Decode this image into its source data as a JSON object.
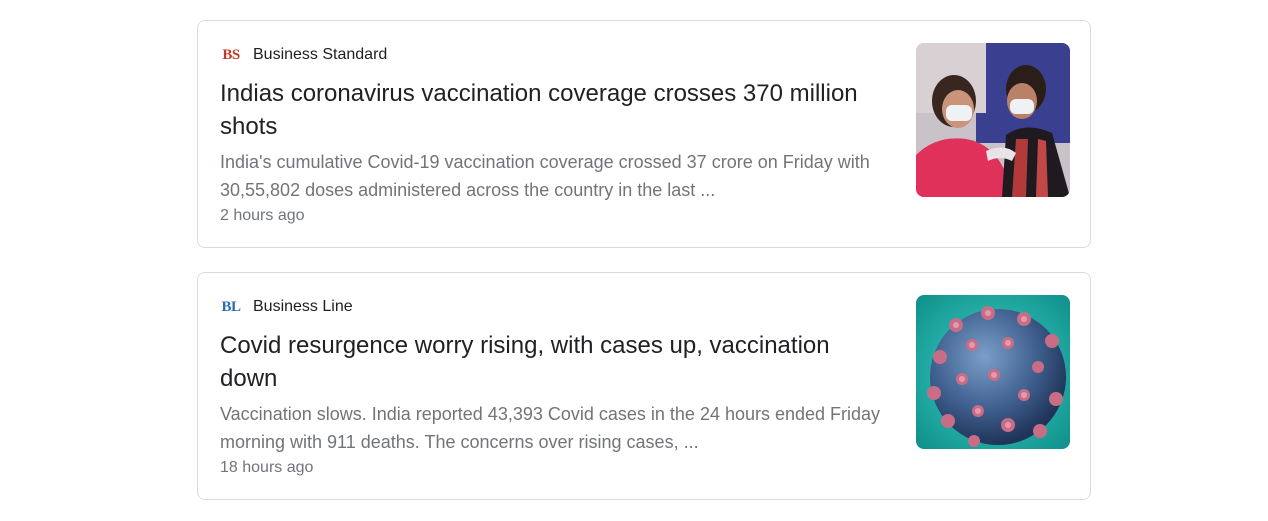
{
  "articles": [
    {
      "source": "Business Standard",
      "logo_text": "BS",
      "logo_color": "#c0392b",
      "headline": "Indias coronavirus vaccination coverage crosses 370 million shots",
      "snippet": "India's cumulative Covid-19 vaccination coverage crossed 37 crore on Friday with 30,55,802 doses administered across the country in the last ...",
      "time": "2 hours ago",
      "thumbnail_icon": "vaccination-photo"
    },
    {
      "source": "Business Line",
      "logo_text": "BL",
      "logo_color": "#2a6db5",
      "headline": "Covid resurgence worry rising, with cases up, vaccination down",
      "snippet": "Vaccination slows. India reported 43,393 Covid cases in the 24 hours ended Friday morning with 911 deaths. The concerns over rising cases, ...",
      "time": "18 hours ago",
      "thumbnail_icon": "coronavirus-illustration"
    }
  ]
}
